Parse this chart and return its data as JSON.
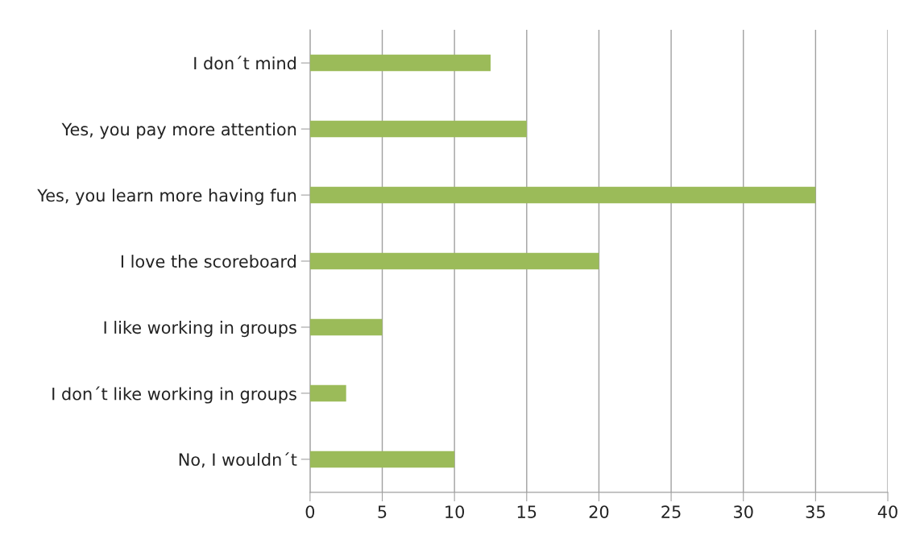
{
  "chart_data": {
    "type": "bar",
    "orientation": "horizontal",
    "categories": [
      "I don´t mind",
      "Yes, you pay more attention",
      "Yes, you learn more having fun",
      "I love the scoreboard",
      "I like working in groups",
      "I don´t like working in groups",
      "No, I wouldn´t"
    ],
    "values": [
      12.5,
      15,
      35,
      20,
      5,
      2.5,
      10
    ],
    "color": "#9bbb59",
    "xlim": [
      0,
      40
    ],
    "xticks": [
      0,
      5,
      10,
      15,
      20,
      25,
      30,
      35,
      40
    ],
    "grid": "x"
  }
}
